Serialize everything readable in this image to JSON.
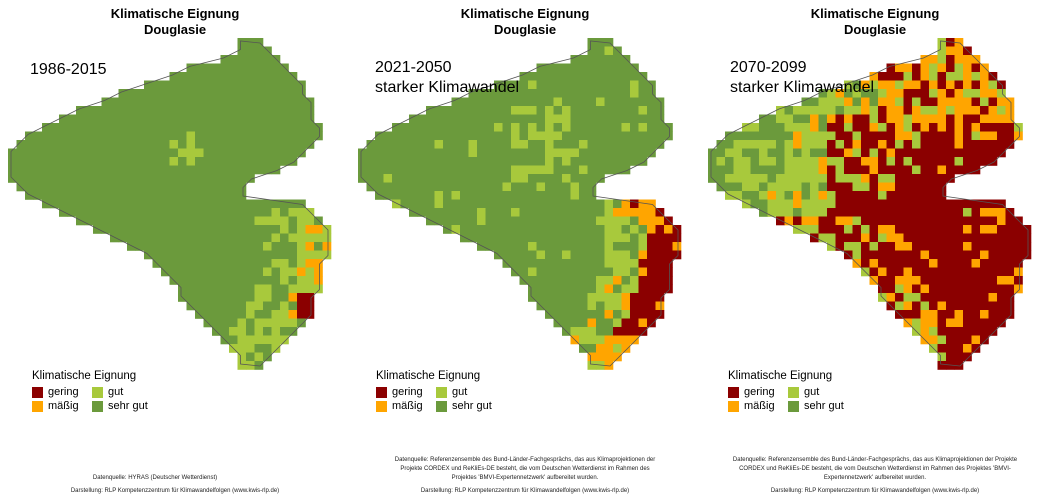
{
  "colors": {
    "gering": "#8b0000",
    "maessig": "#ffa500",
    "gut": "#a8c93c",
    "sehr_gut": "#6b9a3c",
    "border": "#555555"
  },
  "legend": {
    "title": "Klimatische Eignung",
    "items": [
      {
        "label": "gering",
        "color": "#8b0000"
      },
      {
        "label": "gut",
        "color": "#a8c93c"
      },
      {
        "label": "mäßig",
        "color": "#ffa500"
      },
      {
        "label": "sehr gut",
        "color": "#6b9a3c"
      }
    ]
  },
  "panels": [
    {
      "title_line1": "Klimatische Eignung",
      "title_line2": "Douglasie",
      "period": "1986-2015",
      "scenario": "",
      "credit_source": "Datenquelle: HYRAS (Deutscher Wetterdienst)",
      "credit_made": "Darstellung: RLP Kompetenzzentrum für Klimawandelfolgen (www.kwis-rlp.de)"
    },
    {
      "title_line1": "Klimatische Eignung",
      "title_line2": "Douglasie",
      "period": "2021-2050",
      "scenario": "starker Klimawandel",
      "credit_source": "Datenquelle: Referenzensemble des Bund-Länder-Fachgesprächs, das aus Klimaprojektionen der Projekte CORDEX und ReKliEs-DE besteht, die vom Deutschen Wetterdienst im Rahmen des Projektes 'BMVI-Expertennetzwerk' aufbereitet wurden.",
      "credit_made": "Darstellung: RLP Kompetenzzentrum für Klimawandelfolgen (www.kwis-rlp.de)"
    },
    {
      "title_line1": "Klimatische Eignung",
      "title_line2": "Douglasie",
      "period": "2070-2099",
      "scenario": "starker Klimawandel",
      "credit_source": "Datenquelle: Referenzensemble des Bund-Länder-Fachgesprächs, das aus Klimaprojektionen der Projekte CORDEX und ReKliEs-DE besteht, die vom Deutschen Wetterdienst im Rahmen des Projektes 'BMVI-Expertennetzwerk' aufbereitet wurden.",
      "credit_made": "Darstellung: RLP Kompetenzzentrum für Klimawandelfolgen (www.kwis-rlp.de)"
    }
  ]
}
